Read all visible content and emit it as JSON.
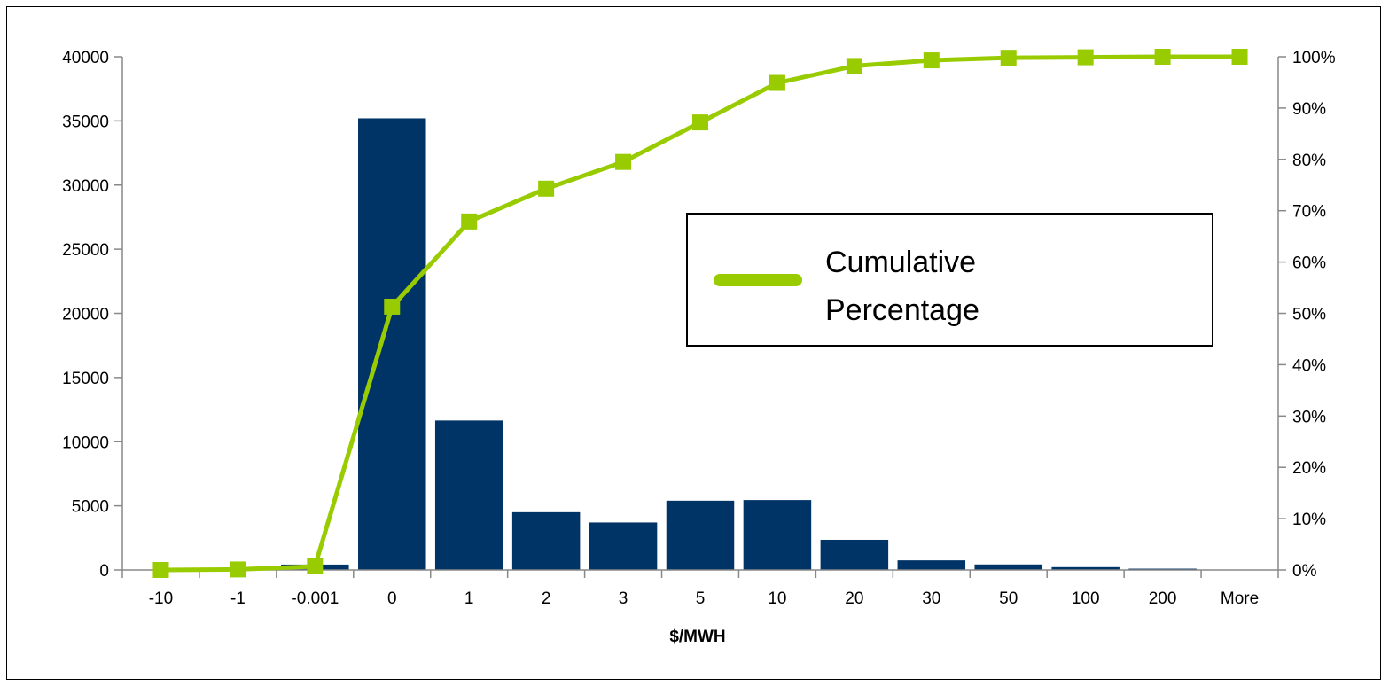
{
  "chart_data": {
    "type": "bar",
    "title": "",
    "xlabel": "$/MWH",
    "ylabel": "",
    "y2label": "",
    "categories": [
      "-10",
      "-1",
      "-0.001",
      "0",
      "1",
      "2",
      "3",
      "5",
      "10",
      "20",
      "30",
      "50",
      "100",
      "200",
      "More"
    ],
    "series": [
      {
        "type": "bar",
        "axis": "left",
        "color": "#003366",
        "values": [
          0,
          0,
          420,
          35200,
          11650,
          4500,
          3700,
          5400,
          5450,
          2350,
          750,
          430,
          220,
          100,
          10
        ]
      },
      {
        "name": "Cumulative Percentage",
        "type": "line",
        "axis": "right",
        "color": "#99CC00",
        "marker": "square",
        "values": [
          0.0,
          0.1,
          0.7,
          51.3,
          67.9,
          74.3,
          79.5,
          87.2,
          94.9,
          98.2,
          99.3,
          99.8,
          99.9,
          100.0,
          100.0
        ]
      }
    ],
    "ylim": [
      0,
      40000
    ],
    "yticks": [
      "0",
      "5000",
      "10000",
      "15000",
      "20000",
      "25000",
      "30000",
      "35000",
      "40000"
    ],
    "y2lim": [
      0,
      100
    ],
    "y2ticks": [
      "0%",
      "10%",
      "20%",
      "30%",
      "40%",
      "50%",
      "60%",
      "70%",
      "80%",
      "90%",
      "100%"
    ],
    "grid": false,
    "legend": {
      "position": "center-right",
      "entries": [
        "Cumulative Percentage"
      ]
    }
  },
  "legend": {
    "line1": "Cumulative",
    "line2": "Percentage"
  }
}
